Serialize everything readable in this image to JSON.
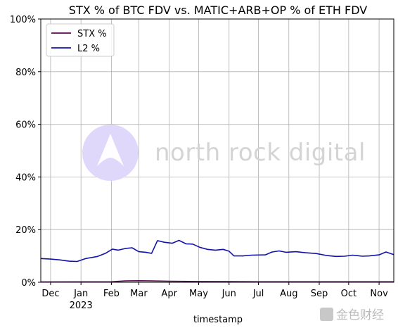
{
  "chart_data": {
    "type": "line",
    "title": "STX % of BTC FDV vs. MATIC+ARB+OP % of ETH FDV",
    "xlabel": "timestamp",
    "ylabel": "",
    "ylim": [
      0,
      100
    ],
    "y_ticks": [
      "0%",
      "20%",
      "40%",
      "60%",
      "80%",
      "100%"
    ],
    "x_ticks": [
      {
        "label": "Dec",
        "x": "2022-12-01"
      },
      {
        "label": "Jan",
        "x": "2023-01-01",
        "sub": "2023"
      },
      {
        "label": "Feb",
        "x": "2023-02-01"
      },
      {
        "label": "Mar",
        "x": "2023-03-01"
      },
      {
        "label": "Apr",
        "x": "2023-04-01"
      },
      {
        "label": "May",
        "x": "2023-05-01"
      },
      {
        "label": "Jun",
        "x": "2023-06-01"
      },
      {
        "label": "Jul",
        "x": "2023-07-01"
      },
      {
        "label": "Aug",
        "x": "2023-08-01"
      },
      {
        "label": "Sep",
        "x": "2023-09-01"
      },
      {
        "label": "Oct",
        "x": "2023-10-01"
      },
      {
        "label": "Nov",
        "x": "2023-11-01"
      }
    ],
    "xlim": [
      "2022-11-21",
      "2023-11-16"
    ],
    "grid": true,
    "legend_position": "top-left",
    "series": [
      {
        "name": "STX %",
        "color": "#5a0a50",
        "points": [
          [
            "2022-11-21",
            0.1
          ],
          [
            "2023-01-01",
            0.15
          ],
          [
            "2023-02-01",
            0.2
          ],
          [
            "2023-02-15",
            0.5
          ],
          [
            "2023-03-01",
            0.6
          ],
          [
            "2023-03-15",
            0.5
          ],
          [
            "2023-04-01",
            0.4
          ],
          [
            "2023-05-01",
            0.3
          ],
          [
            "2023-06-01",
            0.25
          ],
          [
            "2023-07-01",
            0.2
          ],
          [
            "2023-08-01",
            0.2
          ],
          [
            "2023-09-01",
            0.2
          ],
          [
            "2023-10-01",
            0.2
          ],
          [
            "2023-11-01",
            0.2
          ],
          [
            "2023-11-16",
            0.2
          ]
        ]
      },
      {
        "name": "L2 %",
        "color": "#1212a8",
        "points": [
          [
            "2022-11-21",
            9.0
          ],
          [
            "2022-12-01",
            8.8
          ],
          [
            "2022-12-10",
            8.5
          ],
          [
            "2022-12-20",
            8.0
          ],
          [
            "2022-12-28",
            7.9
          ],
          [
            "2023-01-06",
            9.0
          ],
          [
            "2023-01-18",
            9.8
          ],
          [
            "2023-01-26",
            11.0
          ],
          [
            "2023-02-02",
            12.6
          ],
          [
            "2023-02-08",
            12.2
          ],
          [
            "2023-02-15",
            12.8
          ],
          [
            "2023-02-22",
            13.1
          ],
          [
            "2023-03-01",
            11.6
          ],
          [
            "2023-03-08",
            11.4
          ],
          [
            "2023-03-14",
            11.0
          ],
          [
            "2023-03-20",
            15.8
          ],
          [
            "2023-03-27",
            15.2
          ],
          [
            "2023-04-04",
            14.8
          ],
          [
            "2023-04-11",
            15.9
          ],
          [
            "2023-04-18",
            14.6
          ],
          [
            "2023-04-25",
            14.5
          ],
          [
            "2023-05-02",
            13.3
          ],
          [
            "2023-05-10",
            12.5
          ],
          [
            "2023-05-18",
            12.2
          ],
          [
            "2023-05-26",
            12.5
          ],
          [
            "2023-06-01",
            11.8
          ],
          [
            "2023-06-06",
            10.0
          ],
          [
            "2023-06-15",
            10.0
          ],
          [
            "2023-06-24",
            10.3
          ],
          [
            "2023-07-08",
            10.4
          ],
          [
            "2023-07-15",
            11.5
          ],
          [
            "2023-07-22",
            11.9
          ],
          [
            "2023-07-29",
            11.4
          ],
          [
            "2023-08-08",
            11.6
          ],
          [
            "2023-08-18",
            11.2
          ],
          [
            "2023-08-29",
            10.9
          ],
          [
            "2023-09-08",
            10.2
          ],
          [
            "2023-09-18",
            9.8
          ],
          [
            "2023-09-27",
            9.9
          ],
          [
            "2023-10-05",
            10.3
          ],
          [
            "2023-10-15",
            9.9
          ],
          [
            "2023-10-22",
            10.0
          ],
          [
            "2023-11-01",
            10.4
          ],
          [
            "2023-11-08",
            11.5
          ],
          [
            "2023-11-16",
            10.5
          ]
        ]
      }
    ]
  },
  "watermark": {
    "brand": "north rock digital",
    "logo_color": "#e0d8fb",
    "corner_logo_text": "金色财经"
  }
}
